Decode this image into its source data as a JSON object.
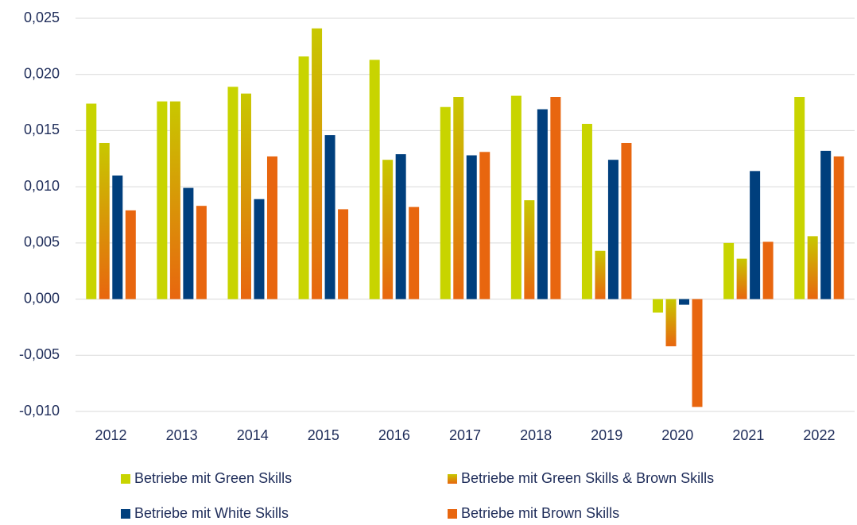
{
  "chart_data": {
    "type": "bar",
    "categories": [
      "2012",
      "2013",
      "2014",
      "2015",
      "2016",
      "2017",
      "2018",
      "2019",
      "2020",
      "2021",
      "2022"
    ],
    "series": [
      {
        "name": "Betriebe mit Green Skills",
        "color": "#c8d400",
        "values": [
          0.0174,
          0.0176,
          0.0189,
          0.0216,
          0.0213,
          0.0171,
          0.0181,
          0.0156,
          -0.0012,
          0.005,
          0.018
        ]
      },
      {
        "name": "Betriebe mit Green Skills & Brown Skills",
        "color": [
          "#c8c800",
          "#e8660f"
        ],
        "values": [
          0.0139,
          0.0176,
          0.0183,
          0.0241,
          0.0124,
          0.018,
          0.0088,
          0.0043,
          -0.0042,
          0.0036,
          0.0056
        ]
      },
      {
        "name": "Betriebe mit White Skills",
        "color": "#003f7d",
        "values": [
          0.011,
          0.0099,
          0.0089,
          0.0146,
          0.0129,
          0.0128,
          0.0169,
          0.0124,
          -0.0005,
          0.0114,
          0.0132
        ]
      },
      {
        "name": "Betriebe mit Brown Skills",
        "color": "#e8660f",
        "values": [
          0.0079,
          0.0083,
          0.0127,
          0.008,
          0.0082,
          0.0131,
          0.018,
          0.0139,
          -0.0096,
          0.0051,
          0.0127
        ]
      }
    ],
    "ylim": [
      -0.01,
      0.025
    ],
    "yticks": [
      {
        "value": -0.01,
        "label": "-0,010"
      },
      {
        "value": -0.005,
        "label": "-0,005"
      },
      {
        "value": 0,
        "label": "0,000"
      },
      {
        "value": 0.005,
        "label": "0,005"
      },
      {
        "value": 0.01,
        "label": "0,010"
      },
      {
        "value": 0.015,
        "label": "0,015"
      },
      {
        "value": 0.02,
        "label": "0,020"
      },
      {
        "value": 0.025,
        "label": "0,025"
      }
    ],
    "grid": true
  }
}
